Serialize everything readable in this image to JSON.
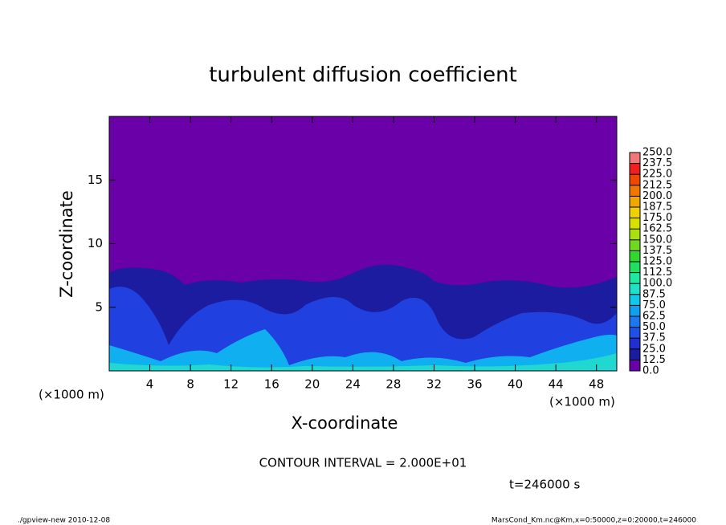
{
  "chart_data": {
    "type": "contour",
    "title": "turbulent diffusion coefficient",
    "x_label": "X-coordinate",
    "y_label": "Z-coordinate",
    "x_unit": "(×1000 m)",
    "y_unit": "(×1000 m)",
    "xlim": [
      0,
      50
    ],
    "xticks": [
      4,
      8,
      12,
      16,
      20,
      24,
      28,
      32,
      36,
      40,
      44,
      48
    ],
    "ylim": [
      0,
      20
    ],
    "yticks": [
      5,
      10,
      15
    ],
    "levels": [
      {
        "value": 0,
        "label": "0.0"
      },
      12.5,
      {
        "value": 25,
        "label": "25.0"
      },
      37.5,
      {
        "value": 50,
        "label": "50.0"
      },
      62.5,
      {
        "value": 75,
        "label": "75.0"
      },
      87.5,
      {
        "value": 100,
        "label": "100.0"
      },
      112.5,
      {
        "value": 125,
        "label": "125.0"
      },
      137.5,
      {
        "value": 150,
        "label": "150.0"
      },
      162.5,
      {
        "value": 175,
        "label": "175.0"
      },
      187.5,
      {
        "value": 200,
        "label": "200.0"
      },
      212.5,
      {
        "value": 225,
        "label": "225.0"
      },
      237.5,
      {
        "value": 250,
        "label": "250.0"
      }
    ],
    "colors": [
      "#6a00a8",
      "#1c1ca0",
      "#1f2fd0",
      "#2050e8",
      "#1a78f0",
      "#10a0f0",
      "#10c8e8",
      "#20e0c8",
      "#20e8a0",
      "#20e060",
      "#30d830",
      "#70d820",
      "#a8e010",
      "#d8e000",
      "#f0d000",
      "#f0a800",
      "#f07800",
      "#f04800",
      "#f02020",
      "#f07878"
    ],
    "contour_interval": "CONTOUR INTERVAL = 2.000E+01",
    "time_label": "t=246000 s",
    "footer_left": "./gpview-new  2010-12-08",
    "footer_right": "MarsCond_Km.nc@Km,x=0:50000,z=0:20000,t=246000"
  }
}
